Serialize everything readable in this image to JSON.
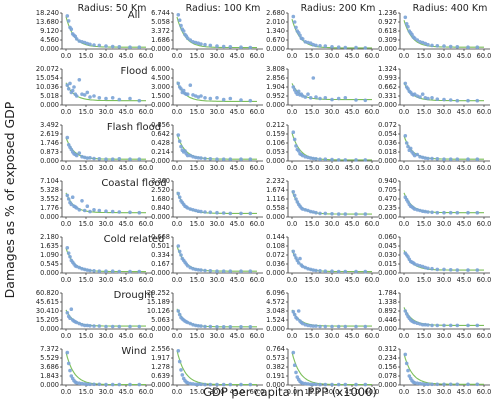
{
  "figure": {
    "ylabel": "Damages as % of exposed GDP",
    "xlabel": "GDP per capita in PPP (x1000)"
  },
  "columns": [
    "Radius: 50 Km",
    "Radius: 100 Km",
    "Radius: 200 Km",
    "Radius: 400 Km"
  ],
  "rows": [
    "All",
    "Flood",
    "Flash flood",
    "Coastal flood",
    "Cold related",
    "Drought",
    "Wind"
  ],
  "x_ticks": [
    "0.0",
    "15.0",
    "30.0",
    "45.0",
    "60.0"
  ],
  "colors": {
    "points": "#7aa3d6",
    "fit": "#7cbf5b",
    "axes": "#333333"
  },
  "chart_data": {
    "type": "scatter",
    "xlim": [
      0,
      60
    ],
    "x": [
      1,
      2,
      3,
      4,
      5,
      6,
      7,
      8,
      10,
      12,
      14,
      16,
      18,
      21,
      25,
      30,
      35,
      40,
      48,
      55
    ],
    "y_ticks": [
      [
        [
          "18.240",
          "13.680",
          "9.120",
          "4.560",
          "0.000"
        ],
        [
          "6.744",
          "5.058",
          "3.372",
          "1.686",
          "0.000"
        ],
        [
          "2.680",
          "2.010",
          "1.340",
          "0.670",
          "0.000"
        ],
        [
          "1.236",
          "0.927",
          "0.618",
          "0.309",
          "0.000"
        ]
      ],
      [
        [
          "20.072",
          "15.054",
          "10.036",
          "5.018",
          "0.000"
        ],
        [
          "6.000",
          "4.500",
          "3.000",
          "1.500",
          "0.000"
        ],
        [
          "3.808",
          "2.856",
          "1.904",
          "0.952",
          "0.000"
        ],
        [
          "1.324",
          "0.993",
          "0.662",
          "0.331",
          "0.000"
        ]
      ],
      [
        [
          "3.492",
          "2.619",
          "1.746",
          "0.873",
          "0.000"
        ],
        [
          "0.856",
          "0.642",
          "0.428",
          "0.214",
          "0.000"
        ],
        [
          "0.212",
          "0.159",
          "0.106",
          "0.053",
          "0.000"
        ],
        [
          "0.072",
          "0.054",
          "0.036",
          "0.018",
          "0.000"
        ]
      ],
      [
        [
          "7.104",
          "5.328",
          "3.552",
          "1.776",
          "0.000"
        ],
        [
          "3.360",
          "2.520",
          "1.680",
          "0.840",
          "0.000"
        ],
        [
          "2.232",
          "1.674",
          "1.116",
          "0.558",
          "0.000"
        ],
        [
          "0.940",
          "0.705",
          "0.470",
          "0.235",
          "0.000"
        ]
      ],
      [
        [
          "2.180",
          "1.635",
          "1.090",
          "0.545",
          "0.000"
        ],
        [
          "0.668",
          "0.501",
          "0.334",
          "0.167",
          "0.000"
        ],
        [
          "0.144",
          "0.108",
          "0.072",
          "0.036",
          "0.000"
        ],
        [
          "0.060",
          "0.045",
          "0.030",
          "0.015",
          "0.000"
        ]
      ],
      [
        [
          "60.820",
          "45.615",
          "30.410",
          "15.205",
          "0.000"
        ],
        [
          "20.252",
          "15.189",
          "10.126",
          "5.063",
          "0.000"
        ],
        [
          "6.096",
          "4.572",
          "3.048",
          "1.524",
          "0.000"
        ],
        [
          "1.784",
          "1.338",
          "0.892",
          "0.446",
          "0.000"
        ]
      ],
      [
        [
          "7.372",
          "5.529",
          "3.686",
          "1.843",
          "0.000"
        ],
        [
          "2.556",
          "1.917",
          "1.278",
          "0.639",
          "0.000"
        ],
        [
          "0.764",
          "0.573",
          "0.382",
          "0.191",
          "0.000"
        ],
        [
          "0.312",
          "0.234",
          "0.156",
          "0.078",
          "0.000"
        ]
      ]
    ],
    "fit_params": [
      [
        [
          0.85,
          0.05
        ],
        [
          0.85,
          0.04
        ],
        [
          0.8,
          0.03
        ],
        [
          0.75,
          0.05
        ]
      ],
      [
        [
          0.5,
          0.12
        ],
        [
          0.55,
          0.1
        ],
        [
          0.45,
          0.15
        ],
        [
          0.5,
          0.12
        ]
      ],
      [
        [
          0.6,
          0.05
        ],
        [
          0.7,
          0.05
        ],
        [
          0.75,
          0.03
        ],
        [
          0.65,
          0.05
        ]
      ],
      [
        [
          0.55,
          0.12
        ],
        [
          0.6,
          0.1
        ],
        [
          0.65,
          0.08
        ],
        [
          0.55,
          0.12
        ]
      ],
      [
        [
          0.65,
          0.04
        ],
        [
          0.7,
          0.05
        ],
        [
          0.6,
          0.04
        ],
        [
          0.55,
          0.08
        ]
      ],
      [
        [
          0.45,
          0.08
        ],
        [
          0.5,
          0.06
        ],
        [
          0.45,
          0.08
        ],
        [
          0.5,
          0.1
        ]
      ],
      [
        [
          0.9,
          0.01
        ],
        [
          0.95,
          0.01
        ],
        [
          0.9,
          0.01
        ],
        [
          0.85,
          0.02
        ]
      ]
    ],
    "points": [
      [
        [
          0.92,
          0.78,
          0.6,
          0.55,
          0.42,
          0.38,
          0.35,
          0.28,
          0.22,
          0.2,
          0.18,
          0.15,
          0.13,
          0.11,
          0.1,
          0.08,
          0.07,
          0.06,
          0.05,
          0.05
        ],
        [
          0.95,
          0.8,
          0.65,
          0.55,
          0.5,
          0.4,
          0.36,
          0.3,
          0.25,
          0.2,
          0.18,
          0.16,
          0.14,
          0.12,
          0.1,
          0.08,
          0.07,
          0.06,
          0.05,
          0.04
        ],
        [
          0.9,
          0.75,
          0.6,
          0.5,
          0.45,
          0.38,
          0.3,
          0.28,
          0.2,
          0.18,
          0.16,
          0.12,
          0.1,
          0.09,
          0.08,
          0.06,
          0.05,
          0.04,
          0.04,
          0.03
        ],
        [
          0.88,
          0.7,
          0.62,
          0.5,
          0.45,
          0.4,
          0.33,
          0.3,
          0.25,
          0.2,
          0.18,
          0.15,
          0.12,
          0.1,
          0.09,
          0.08,
          0.07,
          0.06,
          0.05,
          0.05
        ]
      ],
      [
        [
          0.55,
          0.45,
          0.6,
          0.35,
          0.4,
          0.5,
          0.3,
          0.25,
          0.7,
          0.3,
          0.28,
          0.35,
          0.22,
          0.25,
          0.2,
          0.18,
          0.2,
          0.15,
          0.18,
          0.12
        ],
        [
          0.6,
          0.5,
          0.45,
          0.35,
          0.4,
          0.32,
          0.3,
          0.3,
          0.55,
          0.28,
          0.25,
          0.22,
          0.25,
          0.2,
          0.18,
          0.2,
          0.15,
          0.18,
          0.14,
          0.12
        ],
        [
          0.5,
          0.42,
          0.35,
          0.3,
          0.38,
          0.28,
          0.3,
          0.25,
          0.22,
          0.3,
          0.2,
          0.75,
          0.22,
          0.18,
          0.2,
          0.15,
          0.18,
          0.2,
          0.14,
          0.13
        ],
        [
          0.6,
          0.5,
          0.45,
          0.38,
          0.35,
          0.3,
          0.28,
          0.3,
          0.25,
          0.22,
          0.3,
          0.2,
          0.18,
          0.2,
          0.16,
          0.15,
          0.14,
          0.12,
          0.12,
          0.12
        ]
      ],
      [
        [
          0.65,
          0.45,
          0.38,
          0.32,
          0.25,
          0.2,
          0.18,
          0.15,
          0.22,
          0.12,
          0.1,
          0.08,
          0.09,
          0.07,
          0.06,
          0.05,
          0.05,
          0.06,
          0.05,
          0.05
        ],
        [
          0.72,
          0.55,
          0.4,
          0.3,
          0.25,
          0.28,
          0.2,
          0.15,
          0.15,
          0.12,
          0.1,
          0.09,
          0.08,
          0.07,
          0.06,
          0.05,
          0.05,
          0.05,
          0.05,
          0.05
        ],
        [
          0.8,
          0.6,
          0.42,
          0.32,
          0.28,
          0.2,
          0.18,
          0.15,
          0.12,
          0.1,
          0.08,
          0.07,
          0.06,
          0.05,
          0.05,
          0.04,
          0.03,
          0.03,
          0.03,
          0.03
        ],
        [
          0.7,
          0.5,
          0.4,
          0.3,
          0.35,
          0.25,
          0.2,
          0.15,
          0.18,
          0.12,
          0.1,
          0.08,
          0.07,
          0.07,
          0.06,
          0.05,
          0.05,
          0.05,
          0.05,
          0.05
        ]
      ],
      [
        [
          0.6,
          0.5,
          0.4,
          0.35,
          0.55,
          0.3,
          0.28,
          0.25,
          0.2,
          0.45,
          0.18,
          0.3,
          0.15,
          0.2,
          0.18,
          0.16,
          0.15,
          0.14,
          0.13,
          0.12
        ],
        [
          0.65,
          0.55,
          0.45,
          0.4,
          0.35,
          0.3,
          0.28,
          0.25,
          0.22,
          0.2,
          0.18,
          0.16,
          0.15,
          0.14,
          0.13,
          0.12,
          0.11,
          0.1,
          0.1,
          0.1
        ],
        [
          0.7,
          0.6,
          0.5,
          0.42,
          0.35,
          0.3,
          0.25,
          0.22,
          0.2,
          0.18,
          0.15,
          0.14,
          0.12,
          0.1,
          0.1,
          0.09,
          0.08,
          0.08,
          0.08,
          0.08
        ],
        [
          0.55,
          0.48,
          0.42,
          0.35,
          0.3,
          0.28,
          0.25,
          0.22,
          0.2,
          0.18,
          0.16,
          0.15,
          0.14,
          0.13,
          0.12,
          0.12,
          0.12,
          0.12,
          0.12,
          0.12
        ]
      ],
      [
        [
          0.7,
          0.55,
          0.45,
          0.35,
          0.3,
          0.25,
          0.2,
          0.18,
          0.15,
          0.12,
          0.1,
          0.08,
          0.07,
          0.06,
          0.05,
          0.05,
          0.05,
          0.04,
          0.04,
          0.04
        ],
        [
          0.75,
          0.6,
          0.5,
          0.4,
          0.35,
          0.3,
          0.25,
          0.2,
          0.15,
          0.12,
          0.1,
          0.09,
          0.08,
          0.07,
          0.06,
          0.05,
          0.05,
          0.05,
          0.05,
          0.05
        ],
        [
          0.6,
          0.5,
          0.42,
          0.35,
          0.28,
          0.4,
          0.22,
          0.18,
          0.15,
          0.12,
          0.1,
          0.08,
          0.07,
          0.06,
          0.05,
          0.05,
          0.04,
          0.04,
          0.04,
          0.04
        ],
        [
          0.55,
          0.5,
          0.45,
          0.38,
          0.32,
          0.3,
          0.28,
          0.25,
          0.22,
          0.2,
          0.18,
          0.15,
          0.13,
          0.12,
          0.1,
          0.1,
          0.09,
          0.08,
          0.08,
          0.08
        ]
      ],
      [
        [
          0.45,
          0.35,
          0.3,
          0.55,
          0.25,
          0.22,
          0.2,
          0.18,
          0.15,
          0.12,
          0.1,
          0.1,
          0.09,
          0.08,
          0.08,
          0.07,
          0.07,
          0.07,
          0.07,
          0.07
        ],
        [
          0.5,
          0.4,
          0.32,
          0.28,
          0.25,
          0.22,
          0.2,
          0.18,
          0.15,
          0.12,
          0.1,
          0.09,
          0.08,
          0.07,
          0.07,
          0.06,
          0.06,
          0.06,
          0.06,
          0.06
        ],
        [
          0.48,
          0.4,
          0.32,
          0.28,
          0.5,
          0.22,
          0.18,
          0.15,
          0.12,
          0.1,
          0.09,
          0.08,
          0.08,
          0.07,
          0.07,
          0.07,
          0.07,
          0.07,
          0.07,
          0.07
        ],
        [
          0.5,
          0.42,
          0.35,
          0.3,
          0.25,
          0.22,
          0.2,
          0.18,
          0.16,
          0.14,
          0.12,
          0.12,
          0.11,
          0.1,
          0.1,
          0.1,
          0.1,
          0.1,
          0.1,
          0.1
        ]
      ],
      [
        [
          0.9,
          0.6,
          0.4,
          0.25,
          0.18,
          0.12,
          0.08,
          0.06,
          0.05,
          0.04,
          0.03,
          0.02,
          0.02,
          0.02,
          0.02,
          0.01,
          0.01,
          0.01,
          0.01,
          0.01
        ],
        [
          0.95,
          0.65,
          0.42,
          0.28,
          0.18,
          0.12,
          0.08,
          0.06,
          0.04,
          0.03,
          0.02,
          0.02,
          0.02,
          0.01,
          0.01,
          0.01,
          0.01,
          0.01,
          0.01,
          0.01
        ],
        [
          0.9,
          0.55,
          0.35,
          0.22,
          0.15,
          0.1,
          0.07,
          0.05,
          0.04,
          0.03,
          0.02,
          0.02,
          0.02,
          0.01,
          0.01,
          0.01,
          0.01,
          0.01,
          0.01,
          0.01
        ],
        [
          0.85,
          0.6,
          0.4,
          0.25,
          0.18,
          0.12,
          0.08,
          0.06,
          0.05,
          0.04,
          0.03,
          0.02,
          0.02,
          0.02,
          0.02,
          0.02,
          0.02,
          0.02,
          0.02,
          0.02
        ]
      ]
    ]
  }
}
